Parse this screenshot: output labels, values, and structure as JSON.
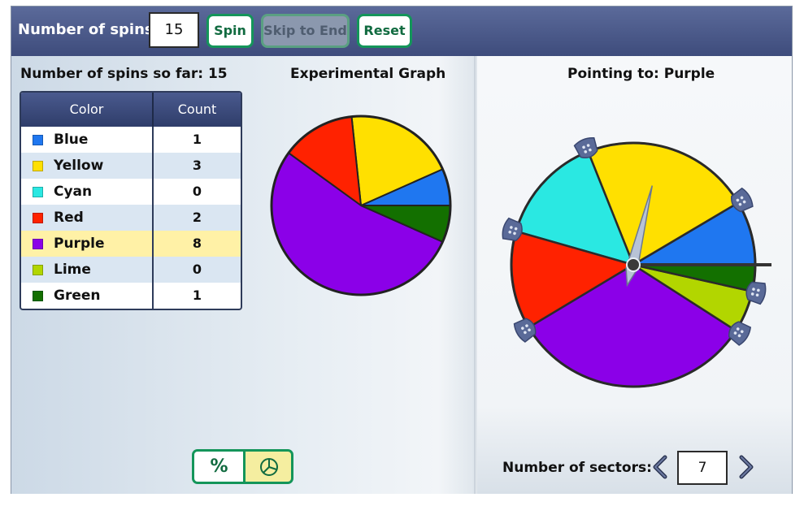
{
  "toolbar": {
    "spins_label": "Number of spins:",
    "spins_value": "15",
    "spin_label": "Spin",
    "skip_label": "Skip to End",
    "reset_label": "Reset"
  },
  "stats": {
    "spins_so_far_label": "Number of spins so far: 15",
    "graph_title": "Experimental Graph",
    "pointing_label": "Pointing to: Purple"
  },
  "table": {
    "headers": [
      "Color",
      "Count"
    ],
    "rows": [
      {
        "color": "Blue",
        "count": "1",
        "hex": "#1f77f0"
      },
      {
        "color": "Yellow",
        "count": "3",
        "hex": "#ffe000"
      },
      {
        "color": "Cyan",
        "count": "0",
        "hex": "#2ae8e2"
      },
      {
        "color": "Red",
        "count": "2",
        "hex": "#ff2200"
      },
      {
        "color": "Purple",
        "count": "8",
        "hex": "#8b00e8"
      },
      {
        "color": "Lime",
        "count": "0",
        "hex": "#b2d600"
      },
      {
        "color": "Green",
        "count": "1",
        "hex": "#137000"
      }
    ],
    "highlighted": "Purple"
  },
  "view_toggle": {
    "percent_label": "%",
    "pie_icon": "pie-chart-icon",
    "selected": "pie"
  },
  "spinner": {
    "sectors_label": "Number of sectors:",
    "sectors_value": "7",
    "prev_icon": "chevron-left-icon",
    "next_icon": "chevron-right-icon",
    "needle_angle_deg": 190
  },
  "chart_data": {
    "type": "pie",
    "categories": [
      "Blue",
      "Yellow",
      "Cyan",
      "Red",
      "Purple",
      "Lime",
      "Green"
    ],
    "values": [
      1,
      3,
      0,
      2,
      8,
      0,
      1
    ],
    "colors": [
      "#1f77f0",
      "#ffe000",
      "#2ae8e2",
      "#ff2200",
      "#8b00e8",
      "#b2d600",
      "#137000"
    ],
    "title": "Experimental Graph"
  },
  "spinner_wheel": {
    "sectors": [
      {
        "color": "Blue",
        "hex": "#1f77f0",
        "share": 0.0851
      },
      {
        "color": "Yellow",
        "hex": "#ffe000",
        "share": 0.2253
      },
      {
        "color": "Cyan",
        "hex": "#2ae8e2",
        "share": 0.1453
      },
      {
        "color": "Red",
        "hex": "#ff2200",
        "share": 0.1303
      },
      {
        "color": "Purple",
        "hex": "#8b00e8",
        "share": 0.3232
      },
      {
        "color": "Lime",
        "hex": "#b2d600",
        "share": 0.0557
      },
      {
        "color": "Green",
        "hex": "#137000",
        "share": 0.0351
      }
    ]
  }
}
